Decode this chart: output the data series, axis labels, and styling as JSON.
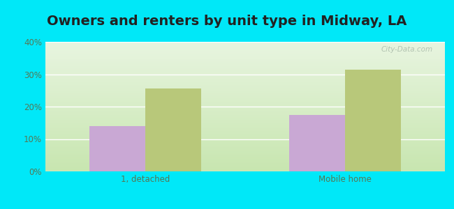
{
  "title": "Owners and renters by unit type in Midway, LA",
  "categories": [
    "1, detached",
    "Mobile home"
  ],
  "owner_values": [
    14.0,
    17.5
  ],
  "renter_values": [
    25.5,
    31.5
  ],
  "owner_color": "#c9a8d4",
  "renter_color": "#b8c87a",
  "ylim": [
    0,
    40
  ],
  "yticks": [
    0,
    10,
    20,
    30,
    40
  ],
  "ytick_labels": [
    "0%",
    "10%",
    "20%",
    "30%",
    "40%"
  ],
  "bg_top": "#e8f5e0",
  "bg_bottom": "#c8e6b0",
  "outer_background": "#00e8f8",
  "title_fontsize": 14,
  "bar_width": 0.28,
  "tick_color": "#557755",
  "watermark_color": "#aabbaa"
}
